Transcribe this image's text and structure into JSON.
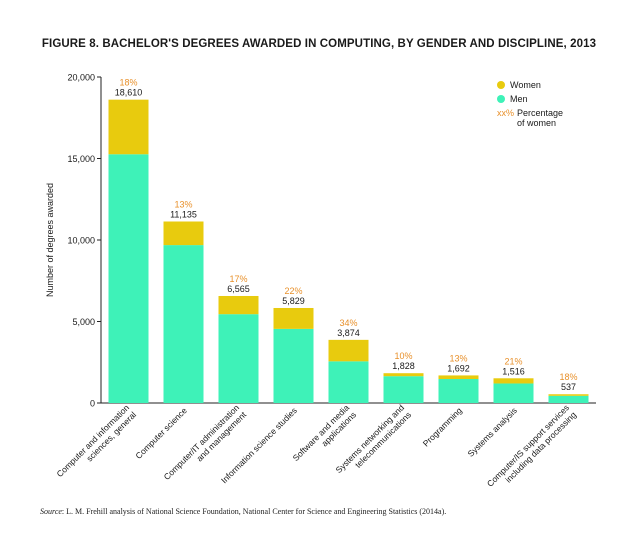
{
  "title": "FIGURE 8. BACHELOR'S DEGREES AWARDED IN COMPUTING, BY GENDER AND DISCIPLINE, 2013",
  "source": {
    "label": "Source",
    "text": ": L. M. Frehill analysis of National Science Foundation, National Center for Science and Engineering Statistics (2014a)."
  },
  "legend": {
    "women": "Women",
    "men": "Men",
    "pct_marker": "xx%",
    "pct_line1": "Percentage",
    "pct_line2": "of women"
  },
  "colors": {
    "women": "#e8cb0e",
    "men": "#3ef2b8",
    "pct": "#e8902a"
  },
  "chart_data": {
    "type": "bar",
    "stacked": true,
    "title": "FIGURE 8. BACHELOR'S DEGREES AWARDED IN COMPUTING, BY GENDER AND DISCIPLINE, 2013",
    "ylabel": "Number of degrees awarded",
    "ylim": [
      0,
      20000
    ],
    "yticks": [
      "0",
      "5,000",
      "10,000",
      "15,000",
      "20,000"
    ],
    "ytick_values": [
      0,
      5000,
      10000,
      15000,
      20000
    ],
    "categories": [
      [
        "Computer and information",
        "sciences, general"
      ],
      [
        "Computer science"
      ],
      [
        "Computer/IT administration",
        "and management"
      ],
      [
        "Information science studies"
      ],
      [
        "Software and media",
        "applications"
      ],
      [
        "Systems networking and",
        "telecommunications"
      ],
      [
        "Programming"
      ],
      [
        "Systems analysis"
      ],
      [
        "Computer/IS support services",
        "including data processing"
      ]
    ],
    "totals": [
      18610,
      11135,
      6565,
      5829,
      3874,
      1828,
      1692,
      1516,
      537
    ],
    "total_labels": [
      "18,610",
      "11,135",
      "6,565",
      "5,829",
      "3,874",
      "1,828",
      "1,692",
      "1,516",
      "537"
    ],
    "pct_women": [
      "18%",
      "13%",
      "17%",
      "22%",
      "34%",
      "10%",
      "13%",
      "21%",
      "18%"
    ],
    "series": [
      {
        "name": "Men",
        "values": [
          15260,
          9687,
          5449,
          4547,
          2557,
          1645,
          1472,
          1198,
          440
        ]
      },
      {
        "name": "Women",
        "values": [
          3350,
          1448,
          1116,
          1282,
          1317,
          183,
          220,
          318,
          97
        ]
      }
    ],
    "legend_position": "top-right",
    "grid": false
  }
}
